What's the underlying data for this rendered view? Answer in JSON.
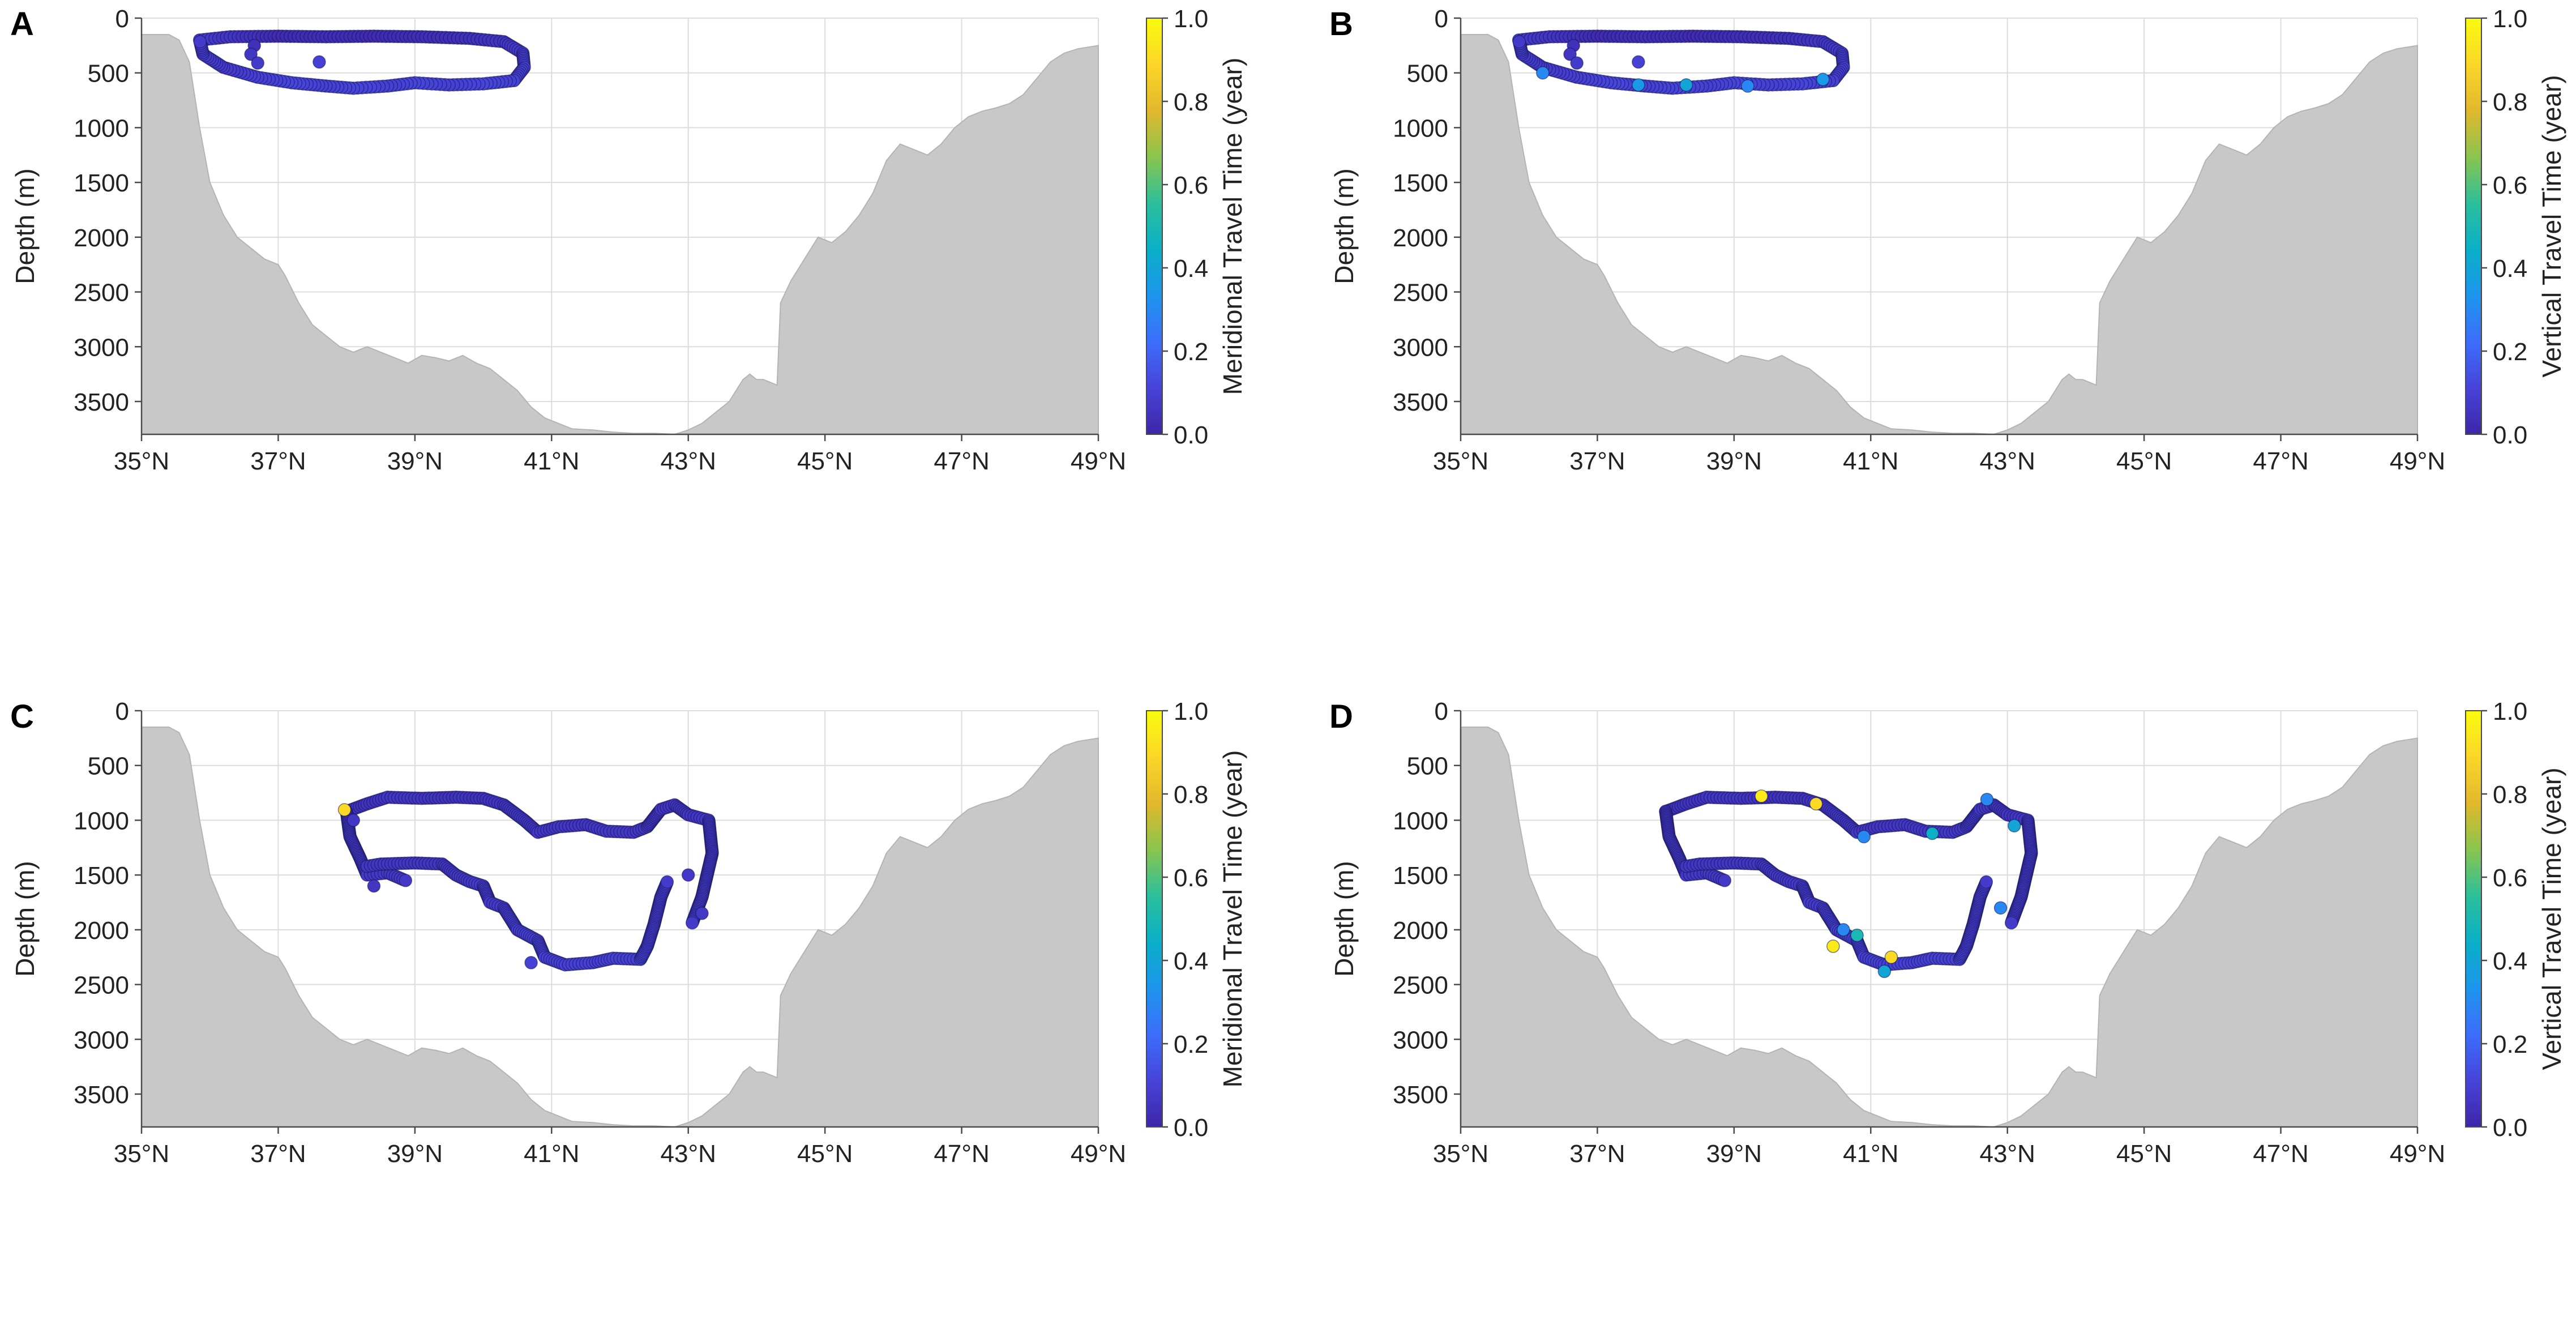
{
  "colors": {
    "terrain_fill": "#c8c8c8",
    "terrain_edge": "#b4b4b4",
    "grid": "#dcdcdc",
    "axis": "#4a4a4a",
    "text": "#222222",
    "colormap": [
      "#3e26a8",
      "#4743d9",
      "#3d6dfc",
      "#1d95ec",
      "#0aafc8",
      "#2cbf9b",
      "#8ac54e",
      "#e1b82d",
      "#fbd628",
      "#f9fb0e"
    ]
  },
  "shared_axes": {
    "x_ticks": [
      35,
      37,
      39,
      41,
      43,
      45,
      47,
      49
    ],
    "x_tick_labels": [
      "35°N",
      "37°N",
      "39°N",
      "41°N",
      "43°N",
      "45°N",
      "47°N",
      "49°N"
    ],
    "y_ticks": [
      0,
      500,
      1000,
      1500,
      2000,
      2500,
      3000,
      3500
    ],
    "y_tick_labels": [
      "0",
      "500",
      "1000",
      "1500",
      "2000",
      "2500",
      "3000",
      "3500"
    ],
    "colorbar_ticks": [
      0,
      0.2,
      0.4,
      0.6,
      0.8,
      1.0
    ],
    "colorbar_tick_labels": [
      "0.0",
      "0.2",
      "0.4",
      "0.6",
      "0.8",
      "1.0"
    ]
  },
  "bathymetry": {
    "lat": [
      35.0,
      35.25,
      35.4,
      35.55,
      35.7,
      35.85,
      36.0,
      36.2,
      36.4,
      36.6,
      36.8,
      37.0,
      37.1,
      37.3,
      37.5,
      37.7,
      37.9,
      38.1,
      38.3,
      38.5,
      38.7,
      38.9,
      39.1,
      39.3,
      39.5,
      39.7,
      39.9,
      40.1,
      40.3,
      40.5,
      40.7,
      40.9,
      41.1,
      41.3,
      41.6,
      41.9,
      42.2,
      42.5,
      42.8,
      43.0,
      43.2,
      43.4,
      43.6,
      43.8,
      43.9,
      44.0,
      44.1,
      44.3,
      44.35,
      44.5,
      44.7,
      44.9,
      45.1,
      45.3,
      45.5,
      45.7,
      45.9,
      46.1,
      46.3,
      46.5,
      46.7,
      46.9,
      47.1,
      47.3,
      47.5,
      47.7,
      47.9,
      48.1,
      48.3,
      48.5,
      48.7,
      49.0
    ],
    "depth": [
      3800,
      3800,
      3750,
      3700,
      3650,
      3600,
      3500,
      3480,
      3420,
      3380,
      3300,
      3260,
      3260,
      3230,
      3150,
      3100,
      3080,
      3000,
      3030,
      3120,
      3100,
      3170,
      3070,
      3120,
      3110,
      3180,
      3200,
      3260,
      3380,
      3480,
      3580,
      3650,
      3720,
      3740,
      3760,
      3780,
      3790,
      3780,
      3800,
      3780,
      3720,
      3650,
      3550,
      3350,
      3230,
      3300,
      3450,
      3430,
      2650,
      2420,
      2300,
      2100,
      2000,
      2000,
      1900,
      1700,
      1400,
      1200,
      1100,
      1200,
      1180,
      1050,
      920,
      820,
      830,
      800,
      720,
      600,
      420,
      330,
      280,
      250
    ],
    "top_depth": [
      150,
      150,
      150,
      200,
      400,
      1000,
      1500,
      1800,
      2000,
      2100,
      2200,
      2250,
      2350,
      2600,
      2800,
      2900,
      3000,
      3050,
      3000,
      3050,
      3100,
      3150,
      3080,
      3100,
      3130,
      3080,
      3150,
      3200,
      3300,
      3400,
      3550,
      3650,
      3700,
      3750,
      3760,
      3780,
      3790,
      3790,
      3800,
      3760,
      3700,
      3600,
      3500,
      3300,
      3250,
      3300,
      3300,
      3350,
      2600,
      2400,
      2200,
      2000,
      2050,
      1950,
      1800,
      1600,
      1300,
      1150,
      1200,
      1250,
      1150,
      1000,
      900,
      850,
      820,
      780,
      700,
      550,
      400,
      320,
      280,
      250
    ]
  },
  "chart_data": [
    {
      "panel": "A",
      "type": "scatter",
      "xlabel": "",
      "ylabel": "Depth (m)",
      "colorbar_label": "Meridional Travel Time (year)",
      "xlim": [
        35,
        49
      ],
      "ylim": [
        3800,
        0
      ],
      "clim": [
        0,
        1
      ],
      "loops": [
        {
          "points": [
            [
              35.85,
              200,
              0.08
            ],
            [
              36.3,
              170,
              0.06
            ],
            [
              37.0,
              165,
              0.02
            ],
            [
              37.7,
              170,
              0.03
            ],
            [
              38.4,
              165,
              0.02
            ],
            [
              39.1,
              170,
              0.03
            ],
            [
              39.8,
              185,
              0.04
            ],
            [
              40.3,
              215,
              0.06
            ],
            [
              40.58,
              320,
              0.08
            ],
            [
              40.6,
              450,
              0.1
            ],
            [
              40.45,
              570,
              0.1
            ],
            [
              40.0,
              600,
              0.12
            ],
            [
              39.5,
              610,
              0.1
            ],
            [
              39.0,
              590,
              0.12
            ],
            [
              38.6,
              620,
              0.1
            ],
            [
              38.1,
              640,
              0.12
            ],
            [
              37.7,
              620,
              0.1
            ],
            [
              37.2,
              590,
              0.12
            ],
            [
              36.7,
              540,
              0.1
            ],
            [
              36.2,
              450,
              0.08
            ],
            [
              35.9,
              330,
              0.08
            ],
            [
              35.85,
              200,
              0.08
            ]
          ],
          "spacing": 0.06
        }
      ],
      "extra_points": [
        [
          36.65,
          250,
          0.04
        ],
        [
          36.6,
          330,
          0.06
        ],
        [
          36.7,
          410,
          0.08
        ],
        [
          37.6,
          400,
          0.1
        ]
      ]
    },
    {
      "panel": "B",
      "type": "scatter",
      "xlabel": "",
      "ylabel": "Depth (m)",
      "colorbar_label": "Vertical Travel Time (year)",
      "xlim": [
        35,
        49
      ],
      "ylim": [
        3800,
        0
      ],
      "clim": [
        0,
        1
      ],
      "loops": [
        {
          "points": [
            [
              35.85,
              200,
              0.08
            ],
            [
              36.3,
              170,
              0.06
            ],
            [
              37.0,
              165,
              0.02
            ],
            [
              37.7,
              170,
              0.03
            ],
            [
              38.4,
              165,
              0.02
            ],
            [
              39.1,
              170,
              0.03
            ],
            [
              39.8,
              185,
              0.04
            ],
            [
              40.3,
              215,
              0.06
            ],
            [
              40.58,
              320,
              0.08
            ],
            [
              40.6,
              450,
              0.1
            ],
            [
              40.45,
              570,
              0.1
            ],
            [
              40.0,
              600,
              0.12
            ],
            [
              39.5,
              610,
              0.1
            ],
            [
              39.0,
              590,
              0.12
            ],
            [
              38.6,
              620,
              0.1
            ],
            [
              38.1,
              640,
              0.12
            ],
            [
              37.7,
              620,
              0.1
            ],
            [
              37.2,
              590,
              0.12
            ],
            [
              36.7,
              540,
              0.1
            ],
            [
              36.2,
              450,
              0.08
            ],
            [
              35.9,
              330,
              0.08
            ],
            [
              35.85,
              200,
              0.08
            ]
          ],
          "spacing": 0.06
        }
      ],
      "extra_points": [
        [
          36.65,
          250,
          0.04
        ],
        [
          36.6,
          330,
          0.06
        ],
        [
          36.7,
          410,
          0.08
        ],
        [
          36.2,
          500,
          0.3
        ],
        [
          37.6,
          610,
          0.35
        ],
        [
          38.3,
          610,
          0.4
        ],
        [
          39.2,
          620,
          0.3
        ],
        [
          40.3,
          560,
          0.35
        ],
        [
          37.6,
          400,
          0.1
        ]
      ]
    },
    {
      "panel": "C",
      "type": "scatter",
      "xlabel": "",
      "ylabel": "Depth (m)",
      "colorbar_label": "Meridional Travel Time (year)",
      "xlim": [
        35,
        49
      ],
      "ylim": [
        3800,
        0
      ],
      "clim": [
        0,
        1
      ],
      "loops": [
        {
          "points": [
            [
              38.0,
              920,
              0.05
            ],
            [
              38.3,
              850,
              0.05
            ],
            [
              38.6,
              790,
              0.06
            ],
            [
              39.1,
              800,
              0.06
            ],
            [
              39.6,
              790,
              0.05
            ],
            [
              40.0,
              800,
              0.05
            ],
            [
              40.3,
              860,
              0.06
            ],
            [
              40.6,
              1000,
              0.07
            ],
            [
              40.8,
              1110,
              0.07
            ],
            [
              41.1,
              1060,
              0.06
            ],
            [
              41.5,
              1040,
              0.06
            ],
            [
              41.8,
              1100,
              0.07
            ],
            [
              42.2,
              1110,
              0.07
            ],
            [
              42.4,
              1060,
              0.06
            ],
            [
              42.6,
              900,
              0.06
            ],
            [
              42.8,
              860,
              0.06
            ],
            [
              43.0,
              950,
              0.06
            ],
            [
              43.3,
              1000,
              0.07
            ],
            [
              43.35,
              1300,
              0.07
            ],
            [
              43.2,
              1700,
              0.08
            ],
            [
              43.05,
              1950,
              0.08
            ]
          ],
          "spacing": 0.05
        },
        {
          "points": [
            [
              38.0,
              920,
              0.05
            ],
            [
              38.05,
              1150,
              0.06
            ],
            [
              38.2,
              1350,
              0.06
            ],
            [
              38.3,
              1500,
              0.07
            ],
            [
              38.6,
              1480,
              0.07
            ],
            [
              38.9,
              1560,
              0.07
            ]
          ],
          "spacing": 0.05
        },
        {
          "points": [
            [
              38.3,
              1420,
              0.06
            ],
            [
              38.5,
              1400,
              0.06
            ],
            [
              39.0,
              1390,
              0.06
            ],
            [
              39.4,
              1400,
              0.06
            ],
            [
              39.6,
              1500,
              0.07
            ],
            [
              39.8,
              1560,
              0.07
            ],
            [
              40.0,
              1600,
              0.08
            ],
            [
              40.1,
              1750,
              0.08
            ],
            [
              40.3,
              1800,
              0.08
            ],
            [
              40.5,
              2000,
              0.09
            ],
            [
              40.8,
              2100,
              0.1
            ],
            [
              40.9,
              2250,
              0.1
            ],
            [
              41.2,
              2320,
              0.1
            ],
            [
              41.6,
              2300,
              0.1
            ],
            [
              41.9,
              2260,
              0.1
            ],
            [
              42.3,
              2270,
              0.1
            ],
            [
              42.4,
              2150,
              0.09
            ],
            [
              42.5,
              1950,
              0.09
            ],
            [
              42.6,
              1700,
              0.08
            ],
            [
              42.7,
              1550,
              0.08
            ]
          ],
          "spacing": 0.05
        }
      ],
      "extra_points": [
        [
          37.97,
          905,
          0.9
        ],
        [
          38.4,
          1600,
          0.06
        ],
        [
          38.1,
          1000,
          0.06
        ],
        [
          43.0,
          1500,
          0.07
        ],
        [
          43.2,
          1850,
          0.07
        ],
        [
          40.7,
          2300,
          0.1
        ]
      ]
    },
    {
      "panel": "D",
      "type": "scatter",
      "xlabel": "",
      "ylabel": "Depth (m)",
      "colorbar_label": "Vertical Travel Time (year)",
      "xlim": [
        35,
        49
      ],
      "ylim": [
        3800,
        0
      ],
      "clim": [
        0,
        1
      ],
      "loops": [
        {
          "points": [
            [
              38.0,
              920,
              0.05
            ],
            [
              38.3,
              850,
              0.05
            ],
            [
              38.6,
              790,
              0.06
            ],
            [
              39.1,
              800,
              0.06
            ],
            [
              39.6,
              790,
              0.05
            ],
            [
              40.0,
              800,
              0.05
            ],
            [
              40.3,
              860,
              0.06
            ],
            [
              40.6,
              1000,
              0.07
            ],
            [
              40.8,
              1110,
              0.07
            ],
            [
              41.1,
              1060,
              0.06
            ],
            [
              41.5,
              1040,
              0.06
            ],
            [
              41.8,
              1100,
              0.07
            ],
            [
              42.2,
              1110,
              0.07
            ],
            [
              42.4,
              1060,
              0.06
            ],
            [
              42.6,
              900,
              0.06
            ],
            [
              42.8,
              860,
              0.06
            ],
            [
              43.0,
              950,
              0.06
            ],
            [
              43.3,
              1000,
              0.07
            ],
            [
              43.35,
              1300,
              0.07
            ],
            [
              43.2,
              1700,
              0.08
            ],
            [
              43.05,
              1950,
              0.08
            ]
          ],
          "spacing": 0.05
        },
        {
          "points": [
            [
              38.0,
              920,
              0.05
            ],
            [
              38.05,
              1150,
              0.06
            ],
            [
              38.2,
              1350,
              0.06
            ],
            [
              38.3,
              1500,
              0.07
            ],
            [
              38.6,
              1480,
              0.07
            ],
            [
              38.9,
              1560,
              0.07
            ]
          ],
          "spacing": 0.05
        },
        {
          "points": [
            [
              38.3,
              1420,
              0.06
            ],
            [
              38.5,
              1400,
              0.06
            ],
            [
              39.0,
              1390,
              0.06
            ],
            [
              39.4,
              1400,
              0.06
            ],
            [
              39.6,
              1500,
              0.07
            ],
            [
              39.8,
              1560,
              0.07
            ],
            [
              40.0,
              1600,
              0.08
            ],
            [
              40.1,
              1750,
              0.08
            ],
            [
              40.3,
              1800,
              0.08
            ],
            [
              40.5,
              2000,
              0.09
            ],
            [
              40.8,
              2100,
              0.1
            ],
            [
              40.9,
              2250,
              0.1
            ],
            [
              41.2,
              2320,
              0.1
            ],
            [
              41.6,
              2300,
              0.1
            ],
            [
              41.9,
              2260,
              0.1
            ],
            [
              42.3,
              2270,
              0.1
            ],
            [
              42.4,
              2150,
              0.09
            ],
            [
              42.5,
              1950,
              0.09
            ],
            [
              42.6,
              1700,
              0.08
            ],
            [
              42.7,
              1550,
              0.08
            ]
          ],
          "spacing": 0.05
        }
      ],
      "extra_points": [
        [
          39.4,
          780,
          0.95
        ],
        [
          40.2,
          850,
          0.9
        ],
        [
          40.9,
          1150,
          0.3
        ],
        [
          41.9,
          1120,
          0.45
        ],
        [
          42.7,
          810,
          0.3
        ],
        [
          43.1,
          1050,
          0.4
        ],
        [
          40.45,
          2150,
          0.95
        ],
        [
          40.8,
          2050,
          0.5
        ],
        [
          41.3,
          2250,
          0.9
        ],
        [
          41.2,
          2380,
          0.4
        ],
        [
          40.6,
          2000,
          0.3
        ],
        [
          42.9,
          1800,
          0.3
        ]
      ]
    }
  ]
}
